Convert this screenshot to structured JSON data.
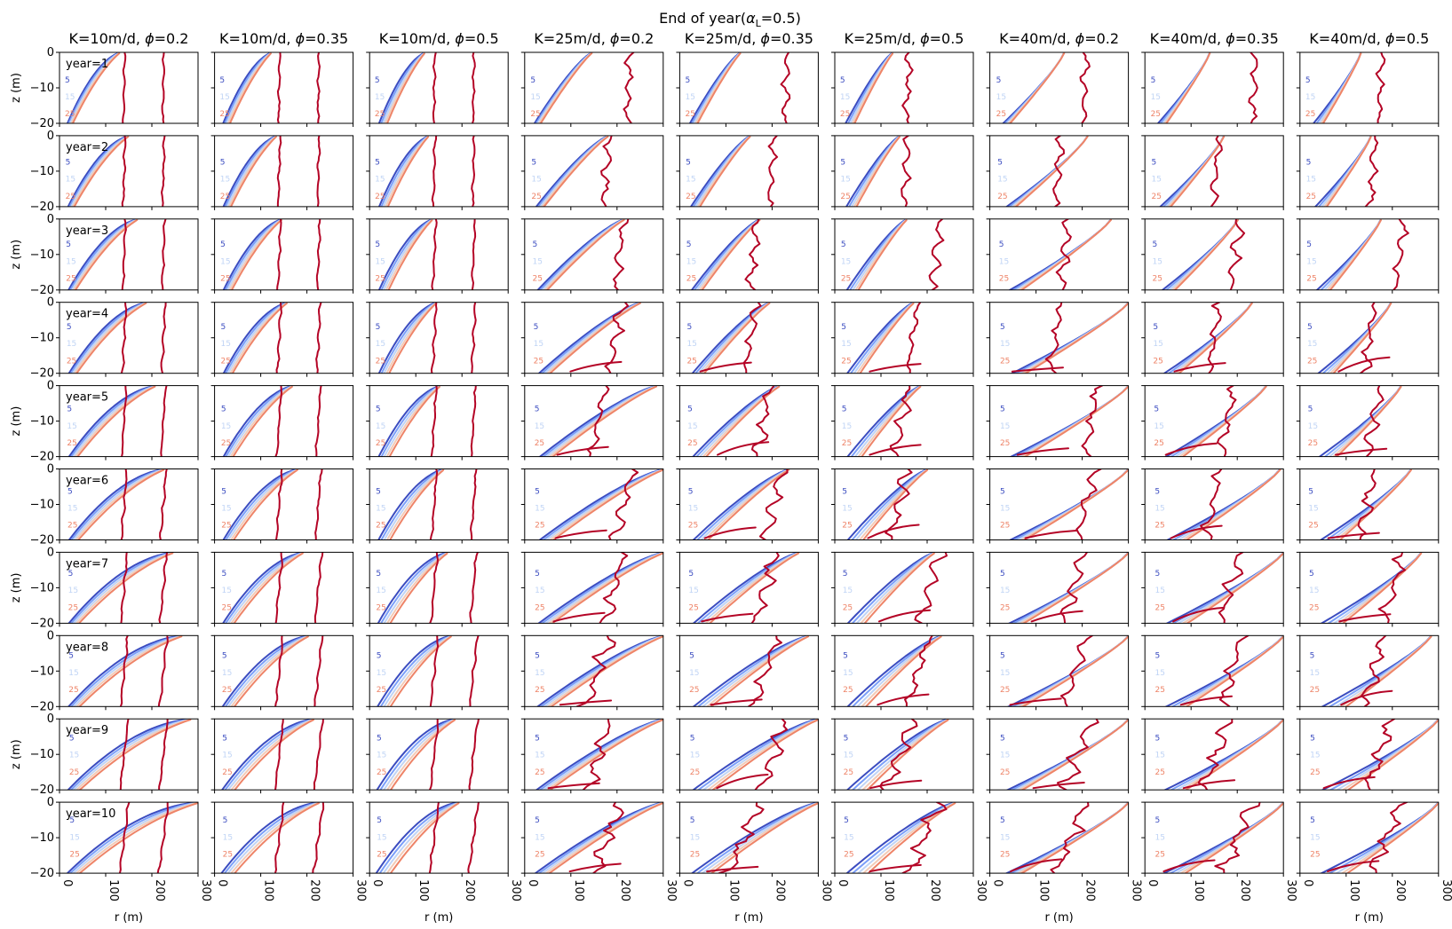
{
  "chart_data": {
    "type": "contour",
    "title": "End of year(α_L=0.5)",
    "title_parts": {
      "prefix": "End of year(",
      "symbol": "α",
      "subscript": "L",
      "suffix": "=0.5)"
    },
    "xlabel": "r (m)",
    "ylabel": "z (m)",
    "xlim": [
      0,
      300
    ],
    "ylim": [
      -20,
      0
    ],
    "xticks": [
      "0",
      "100",
      "200",
      "300"
    ],
    "yticks": [
      "0",
      "−10",
      "−20"
    ],
    "columns": [
      {
        "K": "K=10m/d, ",
        "phi": "=0.2"
      },
      {
        "K": "K=10m/d, ",
        "phi": "=0.35"
      },
      {
        "K": "K=10m/d, ",
        "phi": "=0.5"
      },
      {
        "K": "K=25m/d, ",
        "phi": "=0.2"
      },
      {
        "K": "K=25m/d, ",
        "phi": "=0.35"
      },
      {
        "K": "K=25m/d, ",
        "phi": "=0.5"
      },
      {
        "K": "K=40m/d, ",
        "phi": "=0.2"
      },
      {
        "K": "K=40m/d, ",
        "phi": "=0.35"
      },
      {
        "K": "K=40m/d, ",
        "phi": "=0.5"
      }
    ],
    "phi_symbol": "ϕ",
    "rows": [
      "year=1",
      "year=2",
      "year=3",
      "year=4",
      "year=5",
      "year=6",
      "year=7",
      "year=8",
      "year=9",
      "year=10"
    ],
    "contour_levels": [
      5,
      10,
      15,
      20,
      25,
      30
    ],
    "contour_labels": [
      "5",
      "15",
      "25"
    ],
    "contour_colors": [
      "#3b4cc0",
      "#7b9ff9",
      "#c0d4f5",
      "#f2cbb7",
      "#ee8468",
      "#b40426"
    ]
  }
}
